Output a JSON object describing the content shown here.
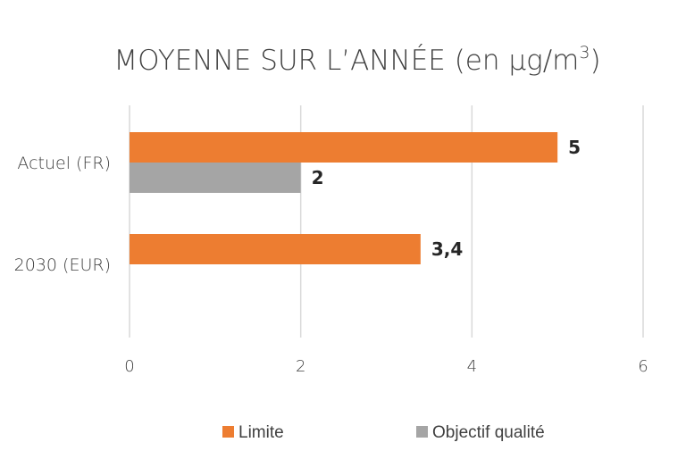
{
  "chart_data": {
    "type": "bar",
    "orientation": "horizontal",
    "title": {
      "main": "MOYENNE SUR L’ANNÉE (en µg/m",
      "superscript": "3",
      "close": ")"
    },
    "categories": [
      "Actuel (FR)",
      "2030 (EUR)"
    ],
    "series": [
      {
        "name": "Limite",
        "color": "#ED7D31",
        "values": [
          5,
          3.4
        ],
        "labels": [
          "5",
          "3,4"
        ]
      },
      {
        "name": "Objectif qualité",
        "color": "#A5A5A5",
        "values": [
          2,
          null
        ],
        "labels": [
          "2",
          ""
        ]
      }
    ],
    "xlim": [
      0,
      6
    ],
    "xticks": [
      "0",
      "2",
      "4",
      "6"
    ],
    "grid": "vertical",
    "legend_position": "bottom"
  }
}
